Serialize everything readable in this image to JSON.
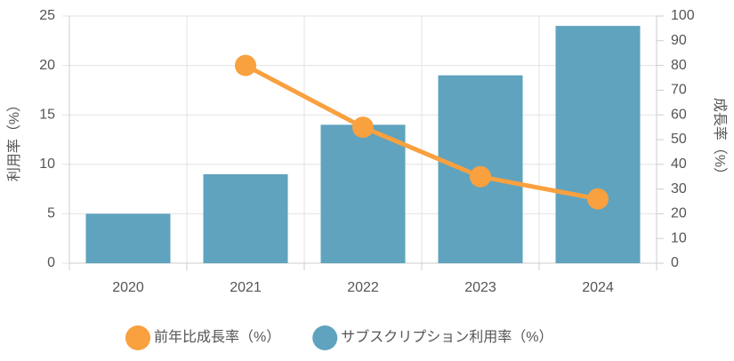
{
  "chart_data": {
    "type": "bar",
    "y_label": "利用率（%）",
    "y2_label": "成長率（%）",
    "categories": [
      "2020",
      "2021",
      "2022",
      "2023",
      "2024"
    ],
    "series": [
      {
        "name": "前年比成長率（%）",
        "type": "line",
        "axis": "y2",
        "color": "#f9a03f",
        "values": [
          null,
          80,
          55,
          35,
          26
        ]
      },
      {
        "name": "サブスクリプション利用率（%）",
        "type": "bar",
        "color": "#5fa3bf",
        "values": [
          5,
          9,
          14,
          19,
          24
        ]
      }
    ],
    "ylim": [
      0,
      25
    ],
    "yticks": [
      0,
      5,
      10,
      15,
      20,
      25
    ],
    "y2lim": [
      0,
      100
    ],
    "y2ticks": [
      0,
      10,
      20,
      30,
      40,
      50,
      60,
      70,
      80,
      90,
      100
    ],
    "grid": true,
    "legend": "bottom"
  }
}
